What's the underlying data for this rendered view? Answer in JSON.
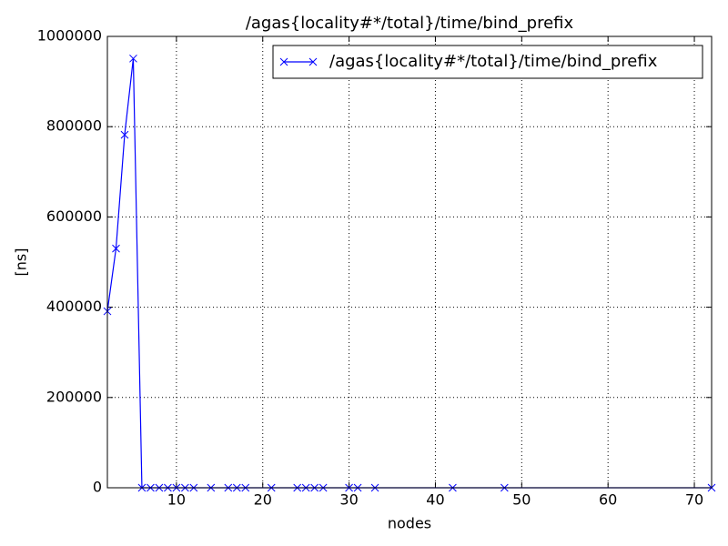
{
  "chart_data": {
    "type": "line",
    "title": "/agas{locality#*/total}/time/bind_prefix",
    "x_label": "nodes",
    "y_label": "[ns]",
    "x": [
      2,
      3,
      4,
      5,
      6,
      7,
      8,
      9,
      10,
      11,
      12,
      14,
      16,
      17,
      18,
      21,
      24,
      25,
      26,
      27,
      30,
      31,
      33,
      42,
      48,
      72
    ],
    "series": [
      {
        "name": "/agas{locality#*/total}/time/bind_prefix",
        "color": "#0000ff",
        "marker": "x",
        "values": [
          391000,
          530000,
          782000,
          951000,
          0,
          0,
          0,
          0,
          0,
          0,
          0,
          0,
          0,
          0,
          0,
          0,
          0,
          0,
          0,
          0,
          0,
          0,
          0,
          0,
          0,
          0
        ]
      }
    ],
    "xlim": [
      2,
      72
    ],
    "xticks": [
      10,
      20,
      30,
      40,
      50,
      60,
      70
    ],
    "ylim": [
      0,
      1000000
    ],
    "yticks": [
      0,
      200000,
      400000,
      600000,
      800000,
      1000000
    ],
    "grid": true,
    "legend": "upper right"
  }
}
